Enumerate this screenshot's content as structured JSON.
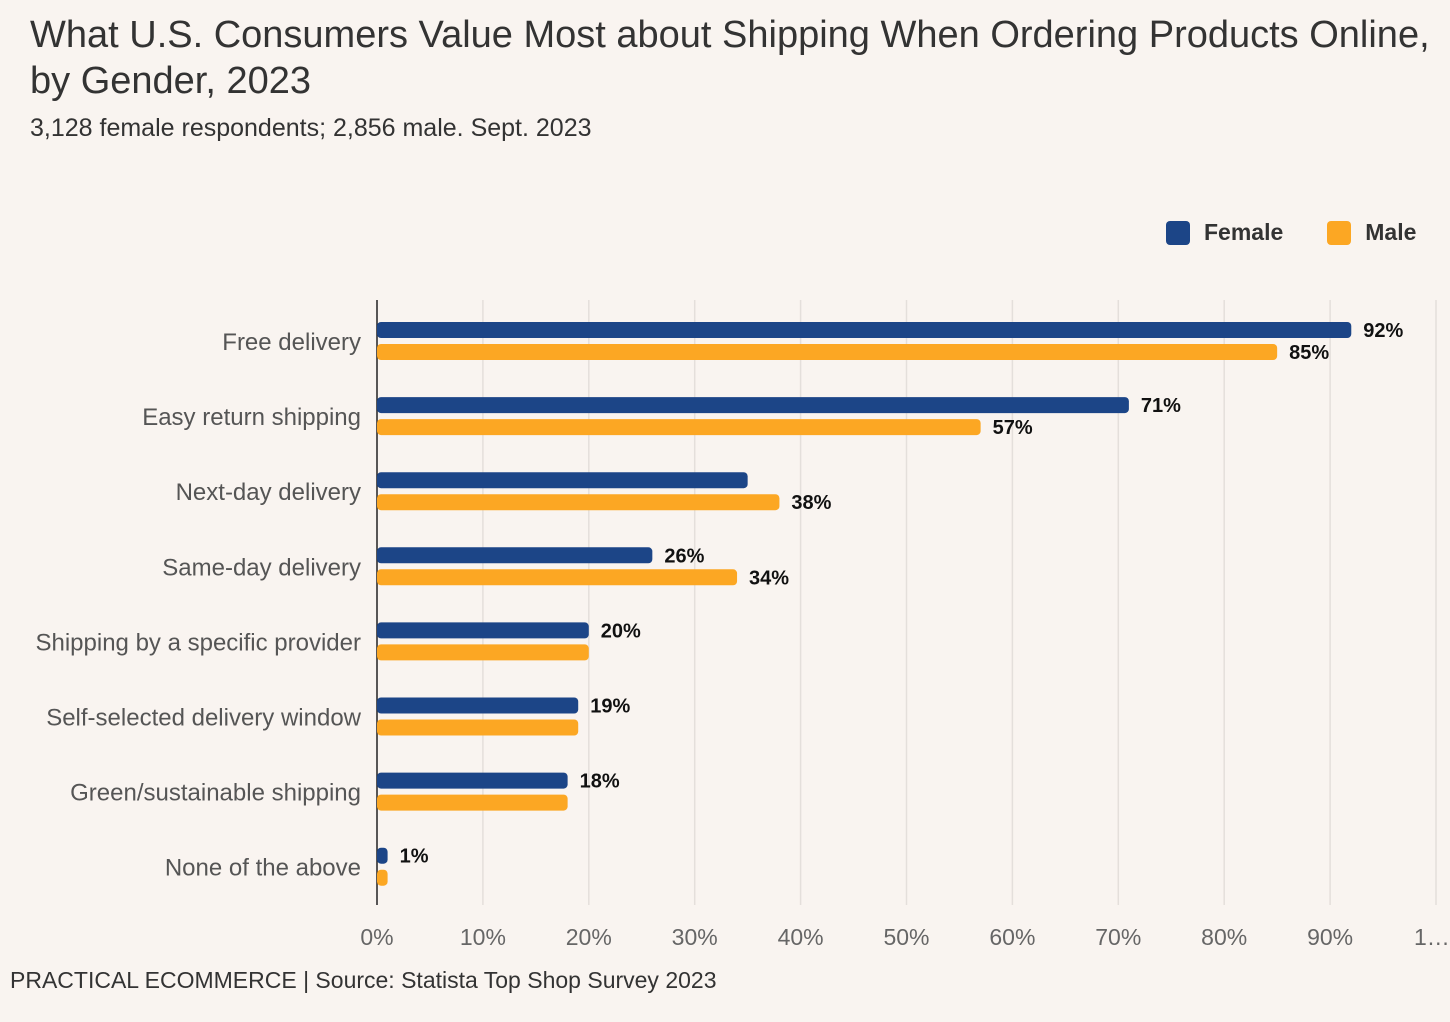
{
  "header": {
    "title": "What U.S. Consumers Value Most about Shipping When Ordering Products Online, by Gender, 2023",
    "subtitle": "3,128 female respondents; 2,856 male. Sept. 2023"
  },
  "footer": "PRACTICAL ECOMMERCE | Source: Statista Top Shop Survey 2023",
  "chart_data": {
    "type": "bar",
    "orientation": "horizontal",
    "title": "What U.S. Consumers Value Most about Shipping When Ordering Products Online, by Gender, 2023",
    "xlabel": "",
    "ylabel": "",
    "xlim": [
      0,
      100
    ],
    "grid": true,
    "legend_position": "top-right",
    "categories": [
      "Free delivery",
      "Easy return shipping",
      "Next-day delivery",
      "Same-day delivery",
      "Shipping by a specific provider",
      "Self-selected delivery window",
      "Green/sustainable shipping",
      "None of the above"
    ],
    "x_tick_labels": [
      "0%",
      "10%",
      "20%",
      "30%",
      "40%",
      "50%",
      "60%",
      "70%",
      "80%",
      "90%",
      "1…"
    ],
    "series": [
      {
        "name": "Female",
        "color": "#1c4587",
        "values": [
          92,
          71,
          35,
          26,
          20,
          19,
          18,
          1
        ],
        "labels_shown": [
          true,
          true,
          false,
          true,
          true,
          true,
          true,
          true
        ]
      },
      {
        "name": "Male",
        "color": "#fca723",
        "values": [
          85,
          57,
          38,
          34,
          20,
          19,
          18,
          1
        ],
        "labels_shown": [
          true,
          true,
          true,
          true,
          false,
          false,
          false,
          false
        ]
      }
    ]
  }
}
